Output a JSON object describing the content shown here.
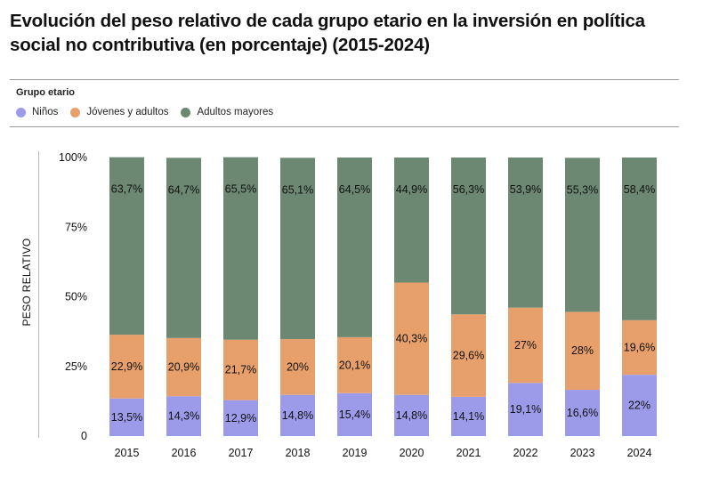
{
  "title": "Evolución del peso relativo de cada grupo etario en la inversión en política social no contributiva (en porcentaje) (2015-2024)",
  "legend": {
    "title": "Grupo etario",
    "items": [
      {
        "label": "Niños",
        "color": "#9b9bea"
      },
      {
        "label": "Jóvenes y adultos",
        "color": "#e7a06b"
      },
      {
        "label": "Adultos mayores",
        "color": "#6c8873"
      }
    ]
  },
  "chart_data": {
    "type": "bar",
    "stacked": true,
    "categories": [
      "2015",
      "2016",
      "2017",
      "2018",
      "2019",
      "2020",
      "2021",
      "2022",
      "2023",
      "2024"
    ],
    "ylabel": "PESO RELATIVO",
    "ylim": [
      0,
      100
    ],
    "yticks": [
      {
        "value": 0,
        "label": "0"
      },
      {
        "value": 25,
        "label": "25%"
      },
      {
        "value": 50,
        "label": "50%"
      },
      {
        "value": 75,
        "label": "75%"
      },
      {
        "value": 100,
        "label": "100%"
      }
    ],
    "series": [
      {
        "name": "Niños",
        "color": "#9b9bea",
        "values": [
          13.5,
          14.3,
          12.9,
          14.8,
          15.4,
          14.8,
          14.1,
          19.1,
          16.6,
          22
        ],
        "labels": [
          "13,5%",
          "14,3%",
          "12,9%",
          "14,8%",
          "15,4%",
          "14,8%",
          "14,1%",
          "19,1%",
          "16,6%",
          "22%"
        ]
      },
      {
        "name": "Jóvenes y adultos",
        "color": "#e7a06b",
        "values": [
          22.9,
          20.9,
          21.7,
          20,
          20.1,
          40.3,
          29.6,
          27,
          28,
          19.6
        ],
        "labels": [
          "22,9%",
          "20,9%",
          "21,7%",
          "20%",
          "20,1%",
          "40,3%",
          "29,6%",
          "27%",
          "28%",
          "19,6%"
        ]
      },
      {
        "name": "Adultos mayores",
        "color": "#6c8873",
        "values": [
          63.7,
          64.7,
          65.5,
          65.1,
          64.5,
          44.9,
          56.3,
          53.9,
          55.3,
          58.4
        ],
        "labels": [
          "63,7%",
          "64,7%",
          "65,5%",
          "65,1%",
          "64,5%",
          "44,9%",
          "56,3%",
          "53,9%",
          "55,3%",
          "58,4%"
        ]
      }
    ],
    "grid": true,
    "legend_position": "top-left"
  }
}
